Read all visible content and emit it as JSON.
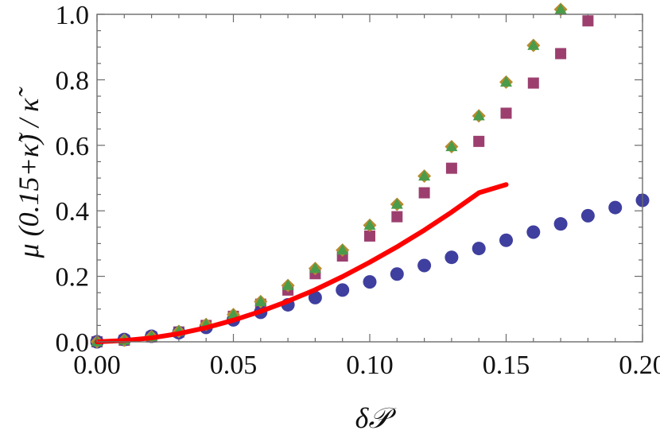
{
  "chart_data": {
    "type": "scatter",
    "xlabel": "δ𝒫",
    "ylabel": "μ (0.15+κ̃) / κ̃",
    "xlim": [
      0,
      0.2
    ],
    "ylim": [
      0,
      1.0
    ],
    "xticks": [
      "0.00",
      "0.05",
      "0.10",
      "0.15",
      "0.20"
    ],
    "yticks": [
      "0.0",
      "0.2",
      "0.4",
      "0.6",
      "0.8",
      "1.0"
    ],
    "grid": false,
    "series": [
      {
        "marker": "circle",
        "color": "#3f3f9f",
        "x": [
          0.0,
          0.01,
          0.02,
          0.03,
          0.04,
          0.05,
          0.06,
          0.07,
          0.08,
          0.09,
          0.1,
          0.11,
          0.12,
          0.13,
          0.14,
          0.15,
          0.16,
          0.17,
          0.18,
          0.19,
          0.2
        ],
        "y": [
          0.0,
          0.007,
          0.017,
          0.028,
          0.044,
          0.067,
          0.09,
          0.113,
          0.135,
          0.158,
          0.183,
          0.207,
          0.233,
          0.258,
          0.285,
          0.31,
          0.335,
          0.36,
          0.385,
          0.41,
          0.432
        ]
      },
      {
        "marker": "square",
        "color": "#9c3f6f",
        "x": [
          0.0,
          0.01,
          0.02,
          0.03,
          0.04,
          0.05,
          0.06,
          0.07,
          0.08,
          0.09,
          0.1,
          0.11,
          0.12,
          0.13,
          0.14,
          0.15,
          0.16,
          0.17,
          0.18
        ],
        "y": [
          0.0,
          0.005,
          0.015,
          0.03,
          0.05,
          0.078,
          0.115,
          0.158,
          0.208,
          0.262,
          0.323,
          0.382,
          0.455,
          0.53,
          0.612,
          0.698,
          0.79,
          0.88,
          0.98
        ]
      },
      {
        "marker": "diamond",
        "color": "#b98a2e",
        "x": [
          0.0,
          0.01,
          0.02,
          0.03,
          0.04,
          0.05,
          0.06,
          0.07,
          0.08,
          0.09,
          0.1,
          0.11,
          0.12,
          0.13,
          0.14,
          0.15,
          0.16,
          0.17
        ],
        "y": [
          0.0,
          0.005,
          0.016,
          0.032,
          0.053,
          0.083,
          0.123,
          0.172,
          0.224,
          0.28,
          0.356,
          0.42,
          0.506,
          0.596,
          0.69,
          0.793,
          0.905,
          1.015
        ]
      },
      {
        "marker": "triangle",
        "color": "#4a9c4a",
        "x": [
          0.0,
          0.01,
          0.02,
          0.03,
          0.04,
          0.05,
          0.06,
          0.07,
          0.08,
          0.09,
          0.1,
          0.11,
          0.12,
          0.13,
          0.14,
          0.15,
          0.16,
          0.17
        ],
        "y": [
          0.0,
          0.005,
          0.016,
          0.032,
          0.053,
          0.083,
          0.123,
          0.172,
          0.224,
          0.28,
          0.356,
          0.42,
          0.506,
          0.596,
          0.69,
          0.793,
          0.905,
          1.015
        ]
      },
      {
        "marker": "line",
        "color": "#ff0000",
        "x": [
          0.0,
          0.01,
          0.02,
          0.03,
          0.04,
          0.05,
          0.06,
          0.07,
          0.08,
          0.09,
          0.1,
          0.11,
          0.12,
          0.13,
          0.14,
          0.15
        ],
        "y": [
          0.0,
          0.004,
          0.012,
          0.025,
          0.043,
          0.066,
          0.093,
          0.124,
          0.159,
          0.199,
          0.243,
          0.29,
          0.341,
          0.396,
          0.455,
          0.48
        ]
      }
    ]
  }
}
